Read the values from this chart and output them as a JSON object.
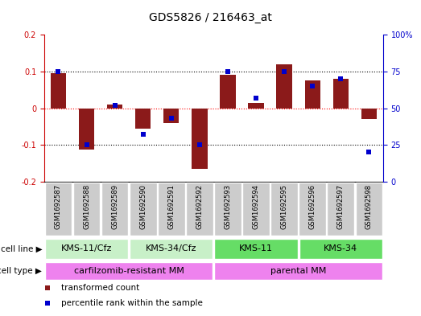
{
  "title": "GDS5826 / 216463_at",
  "samples": [
    "GSM1692587",
    "GSM1692588",
    "GSM1692589",
    "GSM1692590",
    "GSM1692591",
    "GSM1692592",
    "GSM1692593",
    "GSM1692594",
    "GSM1692595",
    "GSM1692596",
    "GSM1692597",
    "GSM1692598"
  ],
  "transformed_count": [
    0.095,
    -0.113,
    0.01,
    -0.055,
    -0.04,
    -0.165,
    0.09,
    0.015,
    0.12,
    0.075,
    0.08,
    -0.03
  ],
  "percentile_rank": [
    75,
    25,
    52,
    32,
    43,
    25,
    75,
    57,
    75,
    65,
    70,
    20
  ],
  "ylim_left": [
    -0.2,
    0.2
  ],
  "ylim_right": [
    0,
    100
  ],
  "yticks_left": [
    -0.2,
    -0.1,
    0.0,
    0.1,
    0.2
  ],
  "yticks_right": [
    0,
    25,
    50,
    75,
    100
  ],
  "ytick_labels_left": [
    "-0.2",
    "-0.1",
    "0",
    "0.1",
    "0.2"
  ],
  "ytick_labels_right": [
    "0",
    "25",
    "50",
    "75",
    "100%"
  ],
  "hlines": [
    -0.1,
    0.0,
    0.1
  ],
  "hline_colors": [
    "black",
    "red",
    "black"
  ],
  "hline_styles": [
    "dotted",
    "dotted",
    "dotted"
  ],
  "cell_line_groups": [
    {
      "label": "KMS-11/Cfz",
      "start": 0,
      "end": 3,
      "color": "#c8f0c8"
    },
    {
      "label": "KMS-34/Cfz",
      "start": 3,
      "end": 6,
      "color": "#c8f0c8"
    },
    {
      "label": "KMS-11",
      "start": 6,
      "end": 9,
      "color": "#66dd66"
    },
    {
      "label": "KMS-34",
      "start": 9,
      "end": 12,
      "color": "#66dd66"
    }
  ],
  "cell_type_groups": [
    {
      "label": "carfilzomib-resistant MM",
      "start": 0,
      "end": 6,
      "color": "#ee82ee"
    },
    {
      "label": "parental MM",
      "start": 6,
      "end": 12,
      "color": "#ee82ee"
    }
  ],
  "sample_box_color": "#cccccc",
  "sample_box_edge": "#ffffff",
  "bar_color": "#8b1a1a",
  "dot_color": "#0000cd",
  "bar_width": 0.55,
  "dot_size": 4,
  "legend_items": [
    {
      "label": "transformed count",
      "color": "#8b1a1a"
    },
    {
      "label": "percentile rank within the sample",
      "color": "#0000cd"
    }
  ],
  "cell_line_label": "cell line",
  "cell_type_label": "cell type",
  "background_color": "#ffffff",
  "left_axis_color": "#cc0000",
  "right_axis_color": "#0000cc",
  "title_fontsize": 10,
  "tick_fontsize": 7,
  "sample_fontsize": 6,
  "label_fontsize": 7.5,
  "group_fontsize": 8
}
